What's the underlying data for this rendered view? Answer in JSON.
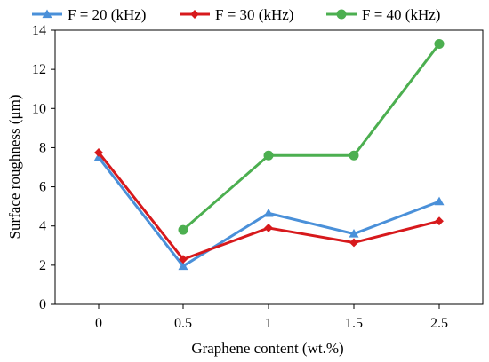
{
  "chart_data": {
    "type": "line",
    "title": "",
    "xlabel": "Graphene content  (wt.%)",
    "ylabel": "Surface  roughness  (μm)",
    "categories": [
      "0",
      "0.5",
      "1",
      "1.5",
      "2.5"
    ],
    "y_ticks": [
      "0",
      "2",
      "4",
      "6",
      "8",
      "10",
      "12",
      "14"
    ],
    "ylim": [
      0,
      14
    ],
    "grid": false,
    "legend_position": "top",
    "series": [
      {
        "name": "F = 20 (kHz)",
        "color": "#4a90d9",
        "marker": "triangle",
        "values": [
          7.5,
          1.95,
          4.65,
          3.6,
          5.25
        ]
      },
      {
        "name": "F = 30 (kHz)",
        "color": "#d7191c",
        "marker": "diamond",
        "values": [
          7.75,
          2.3,
          3.9,
          3.15,
          4.25
        ]
      },
      {
        "name": "F = 40 (kHz)",
        "color": "#4caf50",
        "marker": "circle",
        "values": [
          null,
          3.8,
          7.6,
          7.6,
          13.3
        ]
      }
    ]
  }
}
